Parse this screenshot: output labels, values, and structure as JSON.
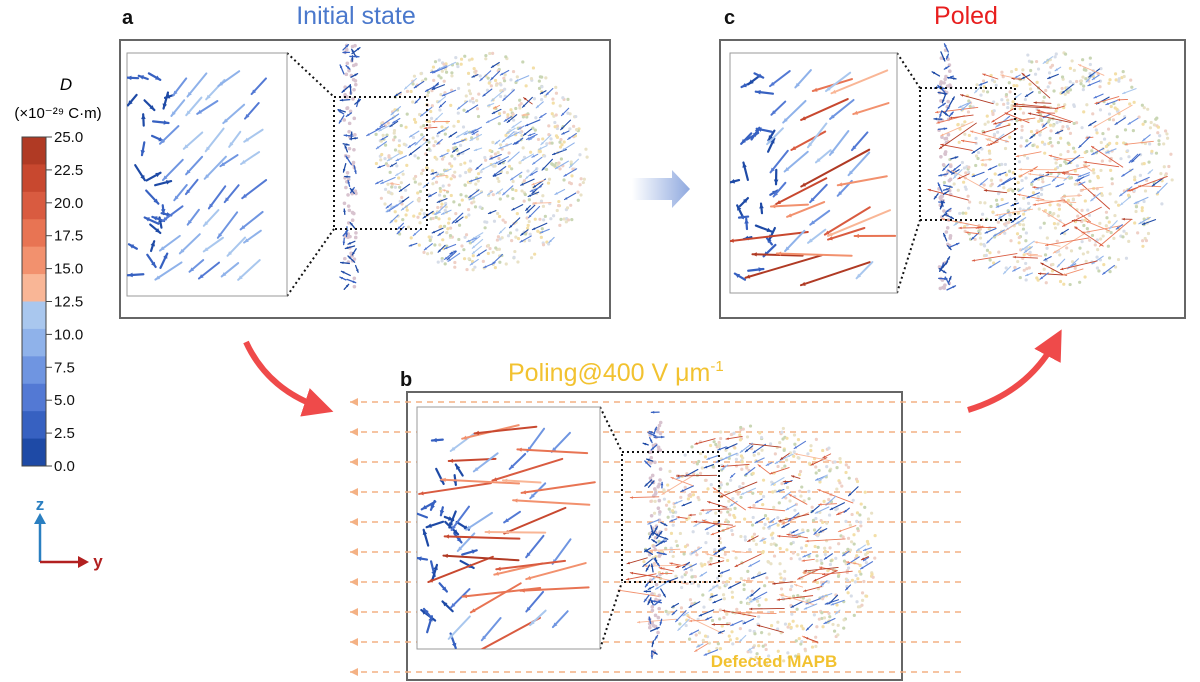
{
  "legend": {
    "symbol": "D",
    "unit": "(×10⁻²⁹ C·m)",
    "ticks": [
      "25.0",
      "22.5",
      "20.0",
      "17.5",
      "15.0",
      "12.5",
      "10.0",
      "7.5",
      "5.0",
      "2.5",
      "0.0"
    ],
    "colors": [
      "#b03a24",
      "#c8482f",
      "#d95b40",
      "#e87453",
      "#f2916e",
      "#f9b696",
      "#a9c7ee",
      "#8fb2ea",
      "#6f95e1",
      "#5379d4",
      "#3761c1",
      "#1e4aa6"
    ]
  },
  "axes": {
    "z_label": "z",
    "y_label": "y",
    "z_color": "#2a7fc1",
    "y_color": "#b22020"
  },
  "panels": {
    "a": {
      "letter": "a",
      "title": "Initial state",
      "title_color": "#4a78cc"
    },
    "b": {
      "letter": "b",
      "title": "Poling@400 V μm",
      "title_sup": "-1",
      "title_color": "#f2c230",
      "annotation": "Defected MAPB",
      "annotation_color": "#f2c230"
    },
    "c": {
      "letter": "c",
      "title": "Poled",
      "title_color": "#e81e1e"
    }
  },
  "colors": {
    "transition_arrow": "#ef4a4a",
    "center_arrow": "#a8bde6",
    "field_line": "#f4b184",
    "panel_border": "#666666"
  }
}
